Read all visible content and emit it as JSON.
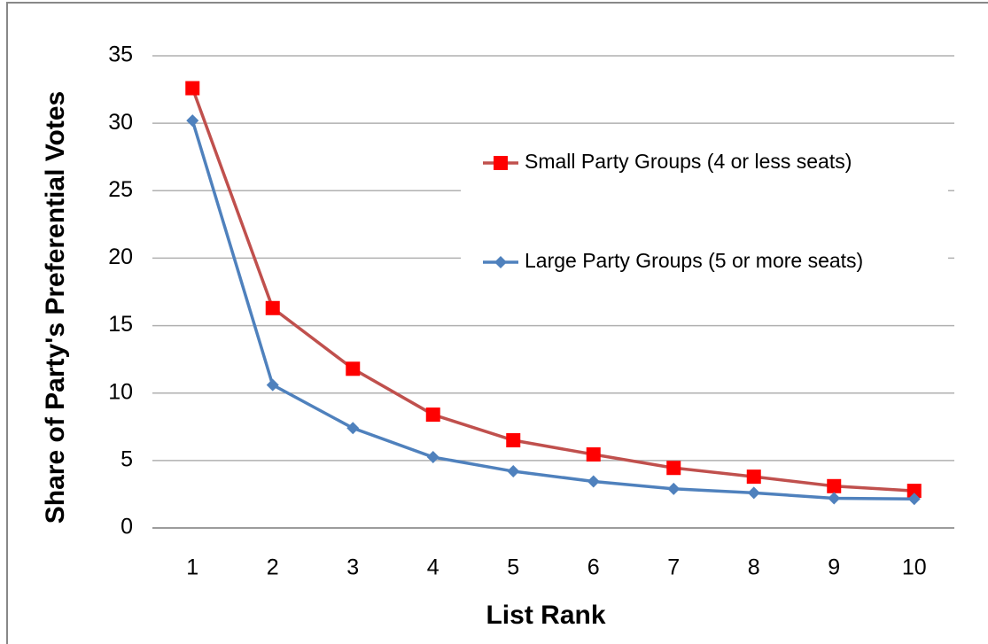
{
  "chart_data": {
    "type": "line",
    "y_label": "Share of Party's Preferential Votes",
    "x_label": "List Rank",
    "categories": [
      1,
      2,
      3,
      4,
      5,
      6,
      7,
      8,
      9,
      10
    ],
    "series": [
      {
        "name": "Small Party Groups (4 or less seats)",
        "color": "#c0504d",
        "marker_color": "#ff0000",
        "marker": "square",
        "values": [
          32.6,
          16.3,
          11.8,
          8.4,
          6.5,
          5.45,
          4.45,
          3.8,
          3.1,
          2.75
        ]
      },
      {
        "name": "Large Party Groups (5 or more seats)",
        "color": "#4f81bd",
        "marker_color": "#4f81bd",
        "marker": "diamond",
        "values": [
          30.2,
          10.6,
          7.4,
          5.25,
          4.2,
          3.45,
          2.9,
          2.6,
          2.2,
          2.15
        ]
      }
    ],
    "ylim": [
      0,
      35
    ],
    "yticks": [
      0,
      5,
      10,
      15,
      20,
      25,
      30,
      35
    ],
    "grid": true
  }
}
